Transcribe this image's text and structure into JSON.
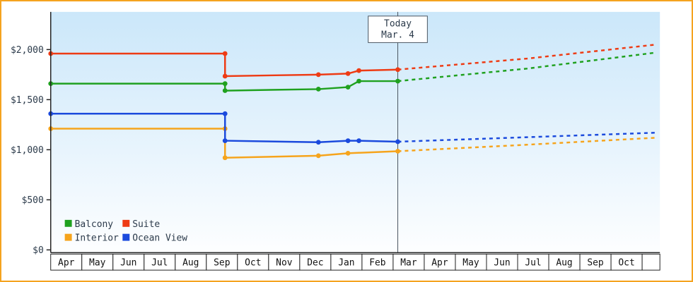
{
  "frame": {
    "border_color": "#f5a31f",
    "plot_bg_top": "#cbe7fa",
    "plot_bg_bottom": "#fdfeff",
    "axis_color": "#222222",
    "text_color": "#2b3a4a",
    "month_label_color": "#111111",
    "today_line_color": "#4a5560"
  },
  "chart_data": {
    "type": "line",
    "x_axis": {
      "tick_labels": [
        "Apr",
        "May",
        "Jun",
        "Jul",
        "Aug",
        "Sep",
        "Oct",
        "Nov",
        "Dec",
        "Jan",
        "Feb",
        "Mar",
        "Apr",
        "May",
        "Jun",
        "Jul",
        "Aug",
        "Sep",
        "Oct"
      ]
    },
    "y_axis": {
      "tick_labels": [
        "$0",
        "$500",
        "$1,000",
        "$1,500",
        "$2,000"
      ],
      "tick_values": [
        0,
        500,
        1000,
        1500,
        2000
      ],
      "range": [
        0,
        2380
      ]
    },
    "today_marker": {
      "line1": "Today",
      "line2": "Mar. 4",
      "month_position": 11.15
    },
    "grid": false,
    "legend": {
      "position": "bottom-left",
      "rows": [
        [
          "Balcony",
          "Suite"
        ],
        [
          "Interior",
          "Ocean View"
        ]
      ]
    },
    "series": [
      {
        "name": "Balcony",
        "color": "#1fa11f",
        "history": [
          [
            0,
            1660
          ],
          [
            5.6,
            1660
          ],
          [
            5.6,
            1590
          ],
          [
            8.6,
            1605
          ],
          [
            9.55,
            1625
          ],
          [
            9.9,
            1685
          ],
          [
            11.15,
            1685
          ]
        ],
        "forecast": [
          [
            11.15,
            1685
          ],
          [
            15.3,
            1810
          ],
          [
            19.45,
            1970
          ]
        ]
      },
      {
        "name": "Suite",
        "color": "#ee3b14",
        "history": [
          [
            0,
            1960
          ],
          [
            5.6,
            1960
          ],
          [
            5.6,
            1735
          ],
          [
            8.6,
            1750
          ],
          [
            9.55,
            1760
          ],
          [
            9.9,
            1790
          ],
          [
            11.15,
            1800
          ]
        ],
        "forecast": [
          [
            11.15,
            1800
          ],
          [
            15.3,
            1910
          ],
          [
            19.45,
            2050
          ]
        ]
      },
      {
        "name": "Interior",
        "color": "#f6a41c",
        "history": [
          [
            0,
            1210
          ],
          [
            5.6,
            1210
          ],
          [
            5.6,
            920
          ],
          [
            8.6,
            940
          ],
          [
            9.55,
            965
          ],
          [
            11.15,
            985
          ]
        ],
        "forecast": [
          [
            11.15,
            985
          ],
          [
            15.3,
            1050
          ],
          [
            19.45,
            1120
          ]
        ]
      },
      {
        "name": "Ocean View",
        "color": "#1b4add",
        "history": [
          [
            0,
            1360
          ],
          [
            5.6,
            1360
          ],
          [
            5.6,
            1090
          ],
          [
            8.6,
            1075
          ],
          [
            9.55,
            1090
          ],
          [
            9.9,
            1090
          ],
          [
            11.15,
            1080
          ]
        ],
        "forecast": [
          [
            11.15,
            1080
          ],
          [
            15.3,
            1125
          ],
          [
            19.45,
            1170
          ]
        ]
      }
    ]
  }
}
